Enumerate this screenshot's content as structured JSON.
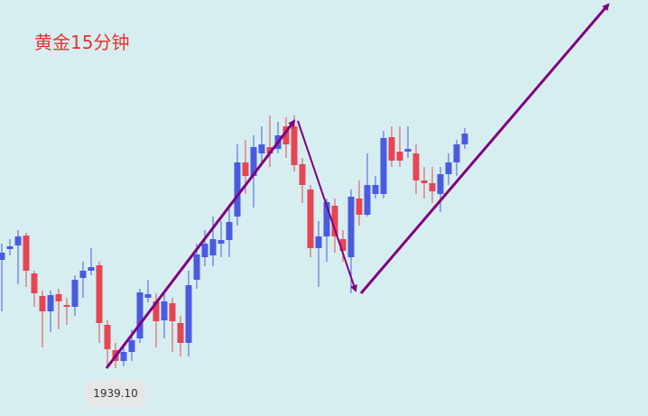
{
  "chart_data": {
    "type": "candlestick",
    "title": "黄金15分钟",
    "low_label": "1939.10",
    "up_color": "#4a5be0",
    "down_color": "#e64553",
    "ylim": [
      1933.8,
      1979.9
    ],
    "open": [
      1951.1,
      1952.3,
      1952.7,
      1953.8,
      1949.6,
      1947.1,
      1945.4,
      1947.3,
      1946.1,
      1945.9,
      1949.1,
      1949.9,
      1950.5,
      1943.9,
      1941.1,
      1939.9,
      1940.9,
      1942.4,
      1946.9,
      1946.5,
      1944.4,
      1946.3,
      1944.1,
      1941.9,
      1948.9,
      1951.4,
      1951.6,
      1952.9,
      1953.3,
      1955.9,
      1961.9,
      1960.4,
      1962.9,
      1963.6,
      1963.4,
      1965.9,
      1965.9,
      1961.7,
      1958.9,
      1952.4,
      1953.7,
      1957.1,
      1953.4,
      1951.4,
      1957.9,
      1956.1,
      1958.4,
      1958.4,
      1964.7,
      1963.1,
      1963.1,
      1962.9,
      1959.9,
      1959.6,
      1958.4,
      1960.6,
      1961.9,
      1963.9
    ],
    "high": [
      1952.9,
      1953.4,
      1954.4,
      1954.1,
      1949.9,
      1947.7,
      1947.7,
      1947.9,
      1946.9,
      1949.4,
      1950.9,
      1952.4,
      1950.9,
      1944.4,
      1941.9,
      1941.4,
      1943.4,
      1947.9,
      1948.9,
      1947.4,
      1947.4,
      1946.9,
      1944.9,
      1949.9,
      1952.9,
      1954.4,
      1955.9,
      1955.4,
      1956.9,
      1963.9,
      1964.4,
      1964.9,
      1965.9,
      1967.1,
      1966.4,
      1966.9,
      1967.1,
      1962.4,
      1959.4,
      1955.4,
      1957.9,
      1957.9,
      1954.4,
      1958.9,
      1959.9,
      1962.9,
      1960.4,
      1965.4,
      1965.9,
      1965.9,
      1965.9,
      1963.9,
      1961.4,
      1961.4,
      1961.4,
      1962.9,
      1964.4,
      1965.7
    ],
    "low": [
      1945.4,
      1951.6,
      1948.4,
      1948.1,
      1945.9,
      1941.4,
      1943.1,
      1943.4,
      1943.9,
      1944.9,
      1946.9,
      1949.4,
      1941.9,
      1939.4,
      1939.1,
      1939.3,
      1939.9,
      1941.9,
      1946.4,
      1941.4,
      1942.4,
      1940.9,
      1940.4,
      1940.4,
      1947.9,
      1950.4,
      1950.4,
      1951.4,
      1951.4,
      1954.9,
      1958.4,
      1956.9,
      1961.9,
      1961.4,
      1962.9,
      1962.4,
      1960.9,
      1957.4,
      1951.4,
      1948.1,
      1950.9,
      1951.9,
      1950.9,
      1947.4,
      1954.9,
      1955.9,
      1957.9,
      1957.9,
      1961.4,
      1961.4,
      1962.4,
      1958.4,
      1957.9,
      1957.4,
      1956.4,
      1959.4,
      1960.4,
      1963.4
    ],
    "close": [
      1951.9,
      1952.6,
      1953.7,
      1949.9,
      1947.4,
      1945.4,
      1947.2,
      1946.5,
      1945.9,
      1948.9,
      1949.9,
      1950.3,
      1944.1,
      1941.2,
      1939.9,
      1940.9,
      1942.2,
      1947.5,
      1947.3,
      1944.3,
      1946.5,
      1944.3,
      1941.9,
      1948.3,
      1951.7,
      1952.9,
      1953.4,
      1953.3,
      1955.3,
      1961.9,
      1960.4,
      1963.6,
      1963.9,
      1962.9,
      1964.9,
      1963.9,
      1961.6,
      1959.4,
      1952.4,
      1953.7,
      1957.5,
      1953.7,
      1952.1,
      1958.1,
      1956.1,
      1959.4,
      1959.4,
      1964.6,
      1962.1,
      1962.1,
      1963.4,
      1959.9,
      1959.6,
      1958.7,
      1960.6,
      1961.9,
      1963.9,
      1965.1
    ]
  }
}
